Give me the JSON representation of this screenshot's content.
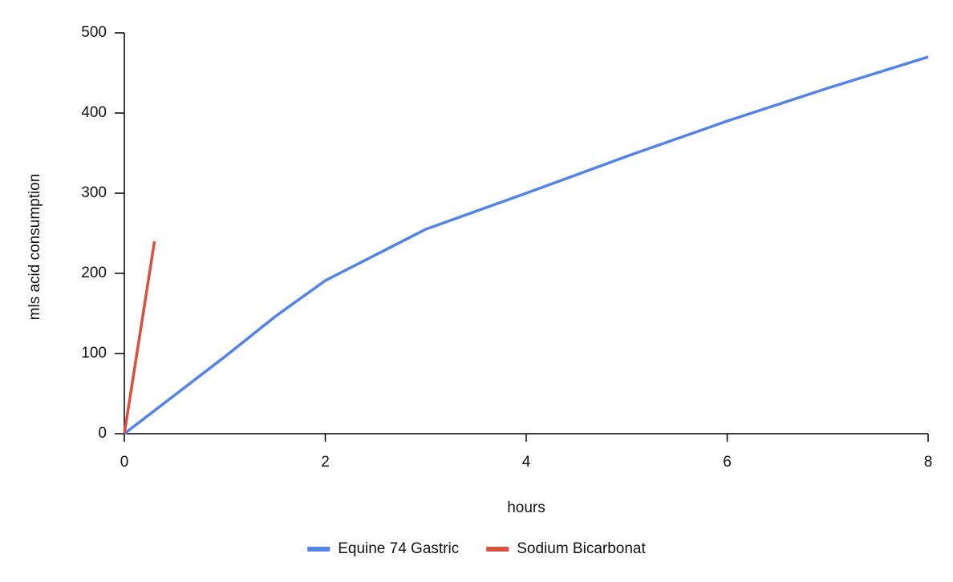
{
  "chart_data": {
    "type": "line",
    "x_label": "hours",
    "y_label": "mls acid consumption",
    "xlim": [
      0,
      8
    ],
    "xticks": [
      0,
      2,
      4,
      6,
      8
    ],
    "ylim": [
      0,
      500
    ],
    "yticks": [
      0,
      100,
      200,
      300,
      400,
      500
    ],
    "grid": false,
    "legend": "bottom",
    "series": [
      {
        "name": "Equine 74 Gastric",
        "color": "#5283e8",
        "x": [
          0,
          1,
          1.5,
          2,
          3,
          4,
          5,
          6,
          7,
          8
        ],
        "values": [
          0,
          96,
          146,
          191,
          255,
          300,
          346,
          390,
          431,
          470
        ]
      },
      {
        "name": "Sodium Bicarbonat",
        "color": "#d9503f",
        "x": [
          0,
          0.3
        ],
        "values": [
          0,
          240
        ]
      }
    ]
  }
}
